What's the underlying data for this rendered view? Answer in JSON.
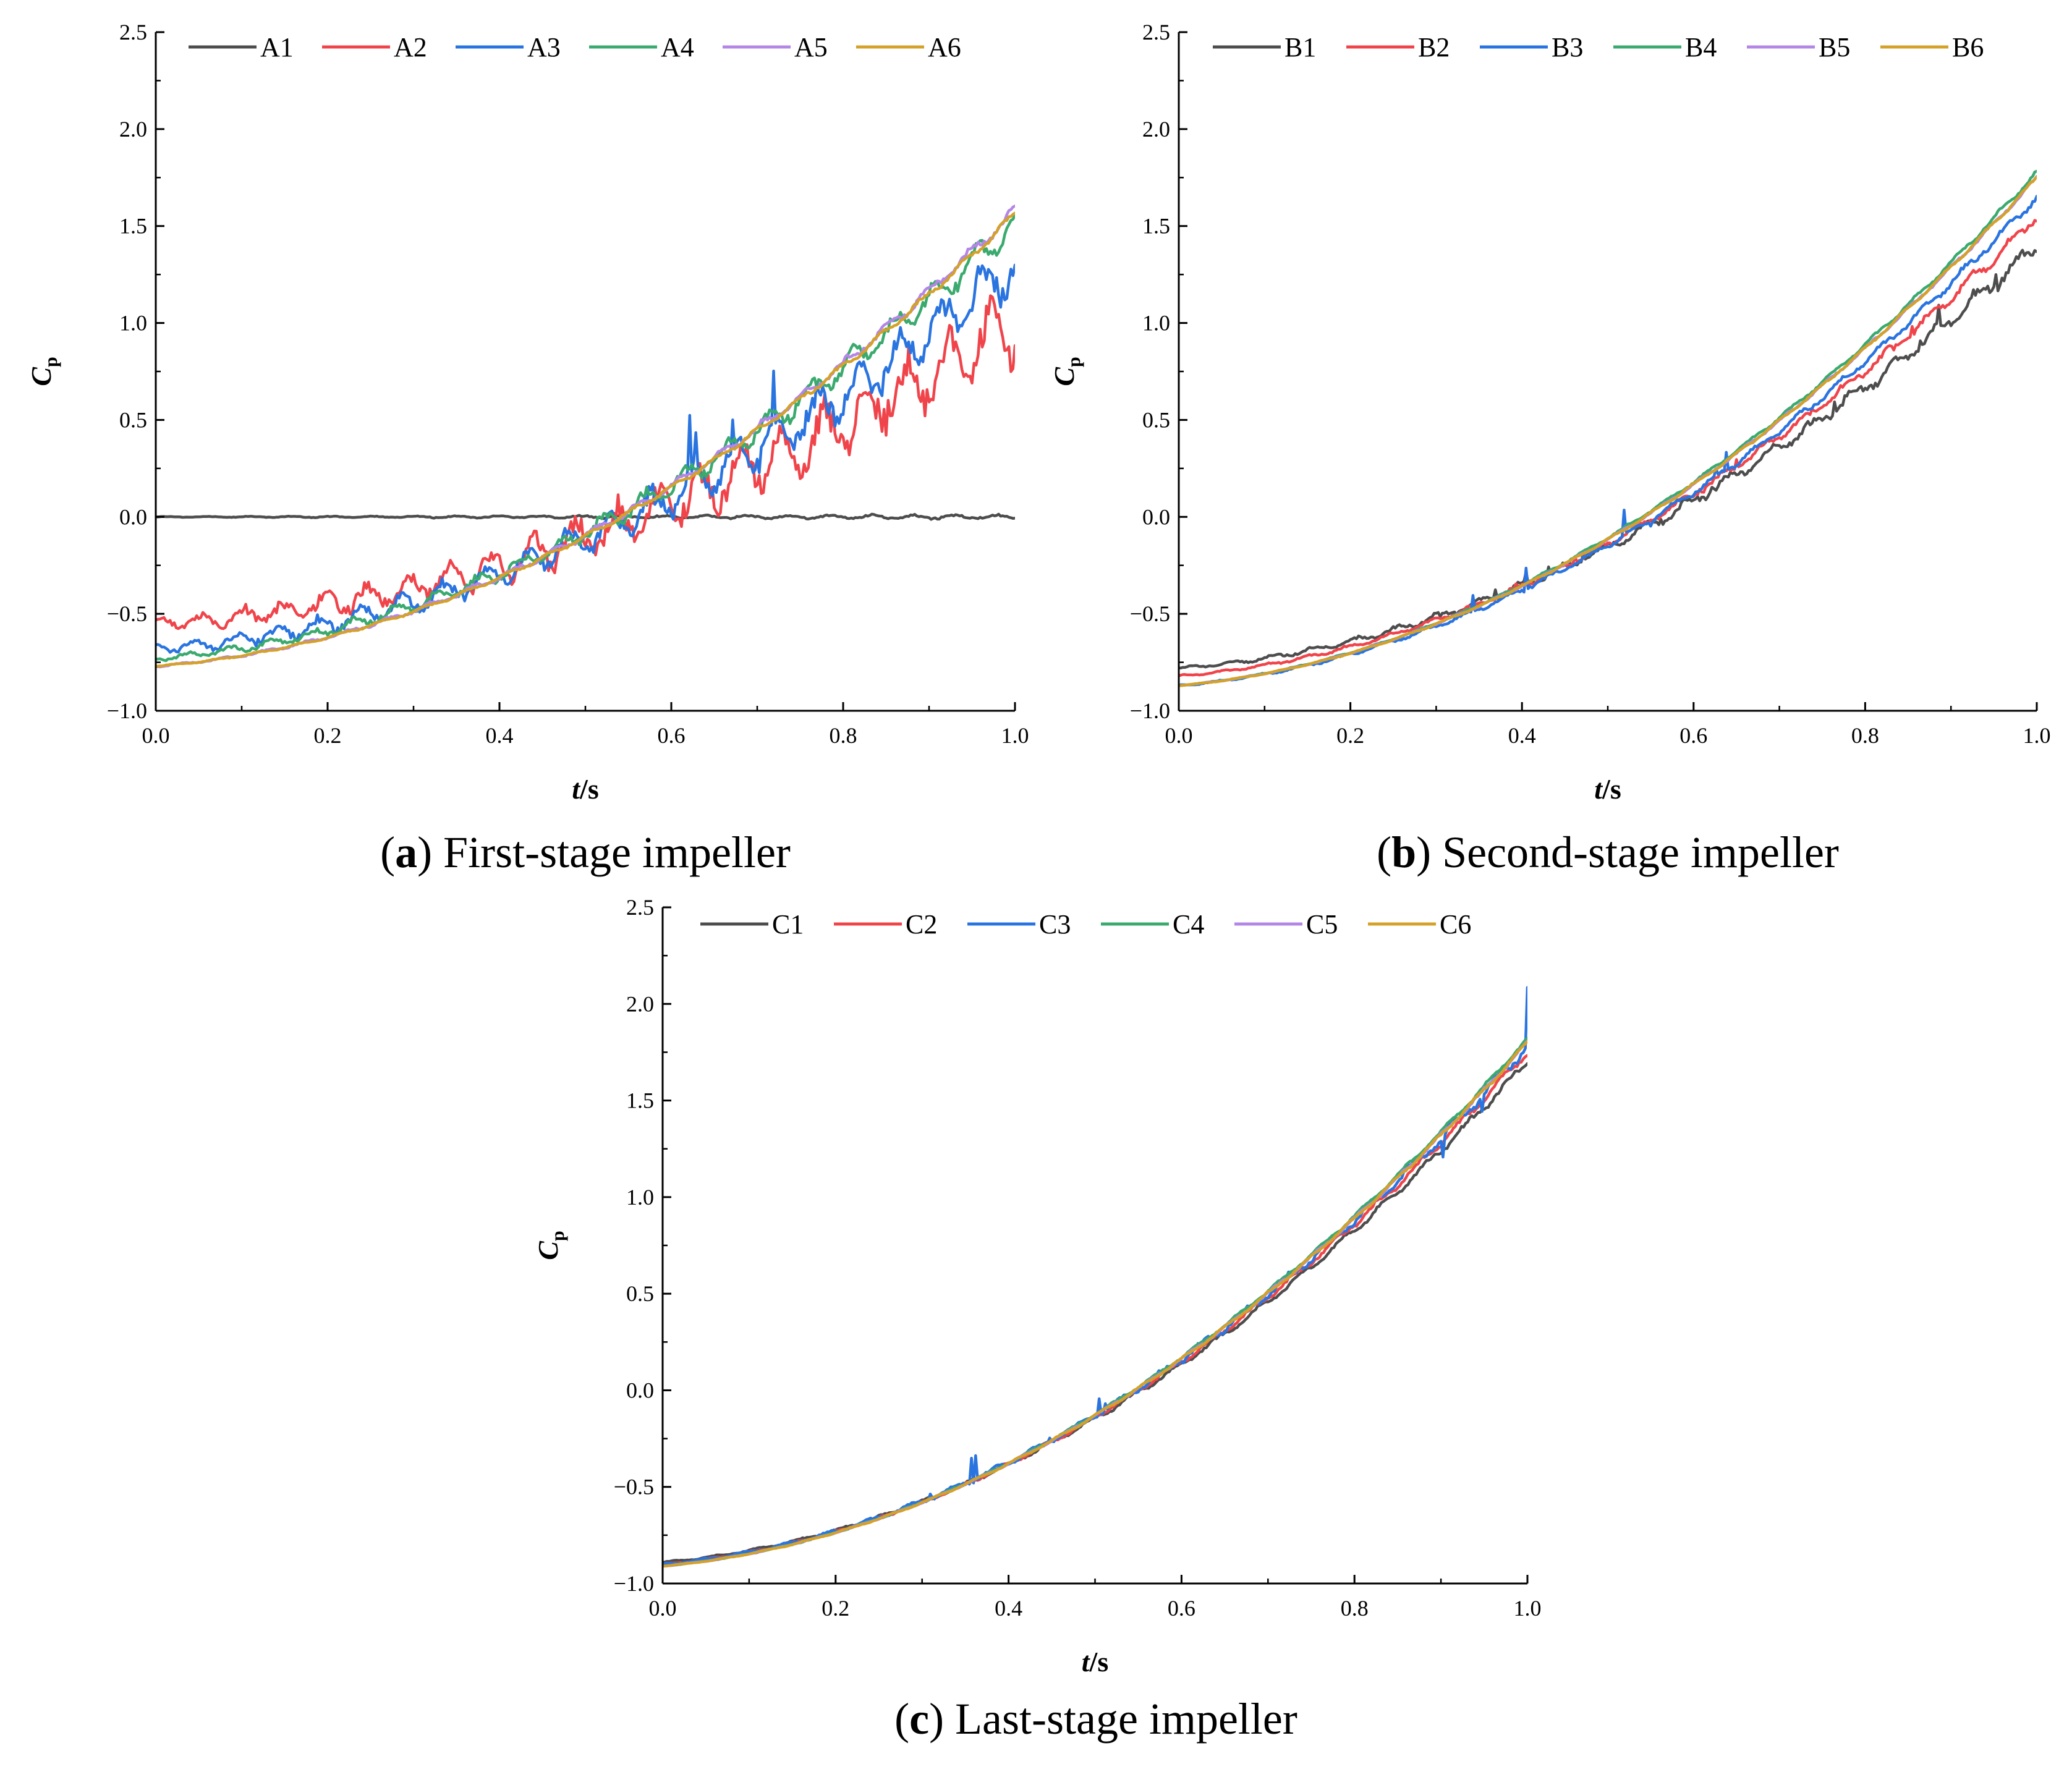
{
  "colors": {
    "s1": "#4d4d4d",
    "s2": "#f0444b",
    "s3": "#2a74e0",
    "s4": "#3aaa6e",
    "s5": "#b486e6",
    "s6": "#d4a12a",
    "axis": "#000000"
  },
  "chart_data": [
    {
      "id": "a",
      "type": "line",
      "caption_letter": "a",
      "caption_text": "First-stage impeller",
      "xlabel": {
        "italic": "t",
        "rest": "/s"
      },
      "ylabel": {
        "main": "C",
        "sub": "p"
      },
      "xlim": [
        0.0,
        1.0
      ],
      "ylim": [
        -1.0,
        2.5
      ],
      "xticks": [
        "0.0",
        "0.2",
        "0.4",
        "0.6",
        "0.8",
        "1.0"
      ],
      "yticks": [
        "2.5",
        "2.0",
        "1.5",
        "1.0",
        "0.5",
        "0.0",
        "−0.5",
        "−1.0"
      ],
      "legend_position": "top",
      "series": [
        {
          "name": "A1",
          "start": 0.0,
          "end": 0.0,
          "shape": 0.0,
          "ripple": 0.012,
          "spike": 0
        },
        {
          "name": "A2",
          "start": -0.55,
          "end": 1.0,
          "shape": 2.3,
          "ripple": 0.2,
          "spike": 0.05
        },
        {
          "name": "A3",
          "start": -0.68,
          "end": 1.3,
          "shape": 2.1,
          "ripple": 0.15,
          "spike": 0.35
        },
        {
          "name": "A4",
          "start": -0.73,
          "end": 1.52,
          "shape": 2.1,
          "ripple": 0.08,
          "spike": 0
        },
        {
          "name": "A5",
          "start": -0.77,
          "end": 1.58,
          "shape": 2.05,
          "ripple": 0.03,
          "spike": 0
        },
        {
          "name": "A6",
          "start": -0.77,
          "end": 1.56,
          "shape": 2.05,
          "ripple": 0.02,
          "spike": 0
        }
      ]
    },
    {
      "id": "b",
      "type": "line",
      "caption_letter": "b",
      "caption_text": "Second-stage impeller",
      "xlabel": {
        "italic": "t",
        "rest": "/s"
      },
      "ylabel": {
        "main": "C",
        "sub": "p"
      },
      "xlim": [
        0.0,
        1.0
      ],
      "ylim": [
        -1.0,
        2.5
      ],
      "xticks": [
        "0.0",
        "0.2",
        "0.4",
        "0.6",
        "0.8",
        "1.0"
      ],
      "yticks": [
        "2.5",
        "2.0",
        "1.5",
        "1.0",
        "0.5",
        "0.0",
        "−0.5",
        "−1.0"
      ],
      "legend_position": "top",
      "series": [
        {
          "name": "B1",
          "start": -0.78,
          "end": 1.4,
          "shape": 1.85,
          "ripple": 0.045,
          "spike": 0.12
        },
        {
          "name": "B2",
          "start": -0.82,
          "end": 1.55,
          "shape": 1.9,
          "ripple": 0.03,
          "spike": 0.05
        },
        {
          "name": "B3",
          "start": -0.87,
          "end": 1.65,
          "shape": 1.95,
          "ripple": 0.025,
          "spike": 0.2
        },
        {
          "name": "B4",
          "start": -0.87,
          "end": 1.78,
          "shape": 1.95,
          "ripple": 0.012,
          "spike": 0
        },
        {
          "name": "B5",
          "start": -0.87,
          "end": 1.75,
          "shape": 1.95,
          "ripple": 0.01,
          "spike": 0
        },
        {
          "name": "B6",
          "start": -0.87,
          "end": 1.75,
          "shape": 1.95,
          "ripple": 0.01,
          "spike": 0
        }
      ]
    },
    {
      "id": "c",
      "type": "line",
      "caption_letter": "c",
      "caption_text": "Last-stage impeller",
      "xlabel": {
        "italic": "t",
        "rest": "/s"
      },
      "ylabel": {
        "main": "C",
        "sub": "p"
      },
      "xlim": [
        0.0,
        1.0
      ],
      "ylim": [
        -1.0,
        2.5
      ],
      "xticks": [
        "0.0",
        "0.2",
        "0.4",
        "0.6",
        "0.8",
        "1.0"
      ],
      "yticks": [
        "2.5",
        "2.0",
        "1.5",
        "1.0",
        "0.5",
        "0.0",
        "−0.5",
        "−1.0"
      ],
      "legend_position": "top",
      "series": [
        {
          "name": "C1",
          "start": -0.89,
          "end": 1.7,
          "shape": 1.8,
          "ripple": 0.02,
          "spike": 0
        },
        {
          "name": "C2",
          "start": -0.9,
          "end": 1.75,
          "shape": 1.8,
          "ripple": 0.02,
          "spike": 0
        },
        {
          "name": "C3",
          "start": -0.9,
          "end": 1.78,
          "shape": 1.8,
          "ripple": 0.03,
          "spike": 0.3
        },
        {
          "name": "C4",
          "start": -0.91,
          "end": 1.82,
          "shape": 1.8,
          "ripple": 0.01,
          "spike": 0
        },
        {
          "name": "C5",
          "start": -0.91,
          "end": 1.8,
          "shape": 1.8,
          "ripple": 0.01,
          "spike": 0
        },
        {
          "name": "C6",
          "start": -0.91,
          "end": 1.8,
          "shape": 1.8,
          "ripple": 0.01,
          "spike": 0
        }
      ]
    }
  ]
}
